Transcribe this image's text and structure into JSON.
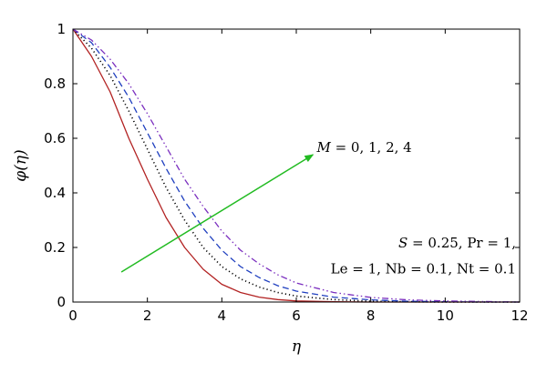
{
  "chart_data": {
    "type": "line",
    "xlabel": "η",
    "ylabel": "φ(η)",
    "xlim": [
      0,
      12
    ],
    "ylim": [
      0,
      1
    ],
    "x_ticks": [
      0,
      2,
      4,
      6,
      8,
      10,
      12
    ],
    "y_ticks": [
      0,
      0.2,
      0.4,
      0.6,
      0.8,
      1
    ],
    "x_tick_labels": [
      "0",
      "2",
      "4",
      "6",
      "8",
      "10",
      "12"
    ],
    "y_tick_labels": [
      "0",
      "0.2",
      "0.4",
      "0.6",
      "0.8",
      "1"
    ],
    "grid": false,
    "series": [
      {
        "style": "solid",
        "color": "#b22222",
        "x": [
          0,
          0.5,
          1,
          1.5,
          2,
          2.5,
          3,
          3.5,
          4,
          4.5,
          5,
          5.5,
          6,
          7,
          8,
          9,
          10,
          11,
          12
        ],
        "values": [
          1,
          0.9,
          0.77,
          0.6,
          0.45,
          0.31,
          0.2,
          0.12,
          0.065,
          0.035,
          0.018,
          0.009,
          0.004,
          0.001,
          0,
          0,
          0,
          0,
          0
        ]
      },
      {
        "style": "dotted",
        "color": "#000000",
        "x": [
          0,
          0.5,
          1,
          1.5,
          2,
          2.5,
          3,
          3.5,
          4,
          4.5,
          5,
          5.5,
          6,
          7,
          8,
          9,
          10,
          11,
          12
        ],
        "values": [
          1,
          0.93,
          0.83,
          0.7,
          0.56,
          0.42,
          0.3,
          0.2,
          0.13,
          0.085,
          0.055,
          0.035,
          0.022,
          0.009,
          0.003,
          0.001,
          0,
          0,
          0
        ]
      },
      {
        "style": "dashed",
        "color": "#1f3fbf",
        "x": [
          0,
          0.5,
          1,
          1.5,
          2,
          2.5,
          3,
          3.5,
          4,
          4.5,
          5,
          5.5,
          6,
          7,
          8,
          9,
          10,
          11,
          12
        ],
        "values": [
          1,
          0.95,
          0.86,
          0.75,
          0.62,
          0.49,
          0.37,
          0.27,
          0.19,
          0.13,
          0.09,
          0.06,
          0.04,
          0.018,
          0.008,
          0.003,
          0.001,
          0,
          0
        ]
      },
      {
        "style": "dashdot",
        "color": "#7b2fbf",
        "x": [
          0,
          0.5,
          1,
          1.5,
          2,
          2.5,
          3,
          3.5,
          4,
          4.5,
          5,
          5.5,
          6,
          7,
          8,
          9,
          10,
          11,
          12
        ],
        "values": [
          1,
          0.96,
          0.89,
          0.8,
          0.69,
          0.57,
          0.45,
          0.35,
          0.26,
          0.19,
          0.14,
          0.1,
          0.07,
          0.035,
          0.017,
          0.008,
          0.004,
          0.002,
          0
        ]
      }
    ],
    "annotations": {
      "arrow": {
        "color": "#22bb22",
        "from": [
          1.3,
          0.11
        ],
        "to": [
          6.45,
          0.54
        ]
      },
      "m_label_prefix": "M",
      "m_label_values": " = 0, 1, 2, 4",
      "param_line1_symbol": "S",
      "param_line1_rest": " = 0.25, Pr = 1,",
      "param_line2": "Le = 1, Nb = 0.1, Nt = 0.1"
    }
  }
}
